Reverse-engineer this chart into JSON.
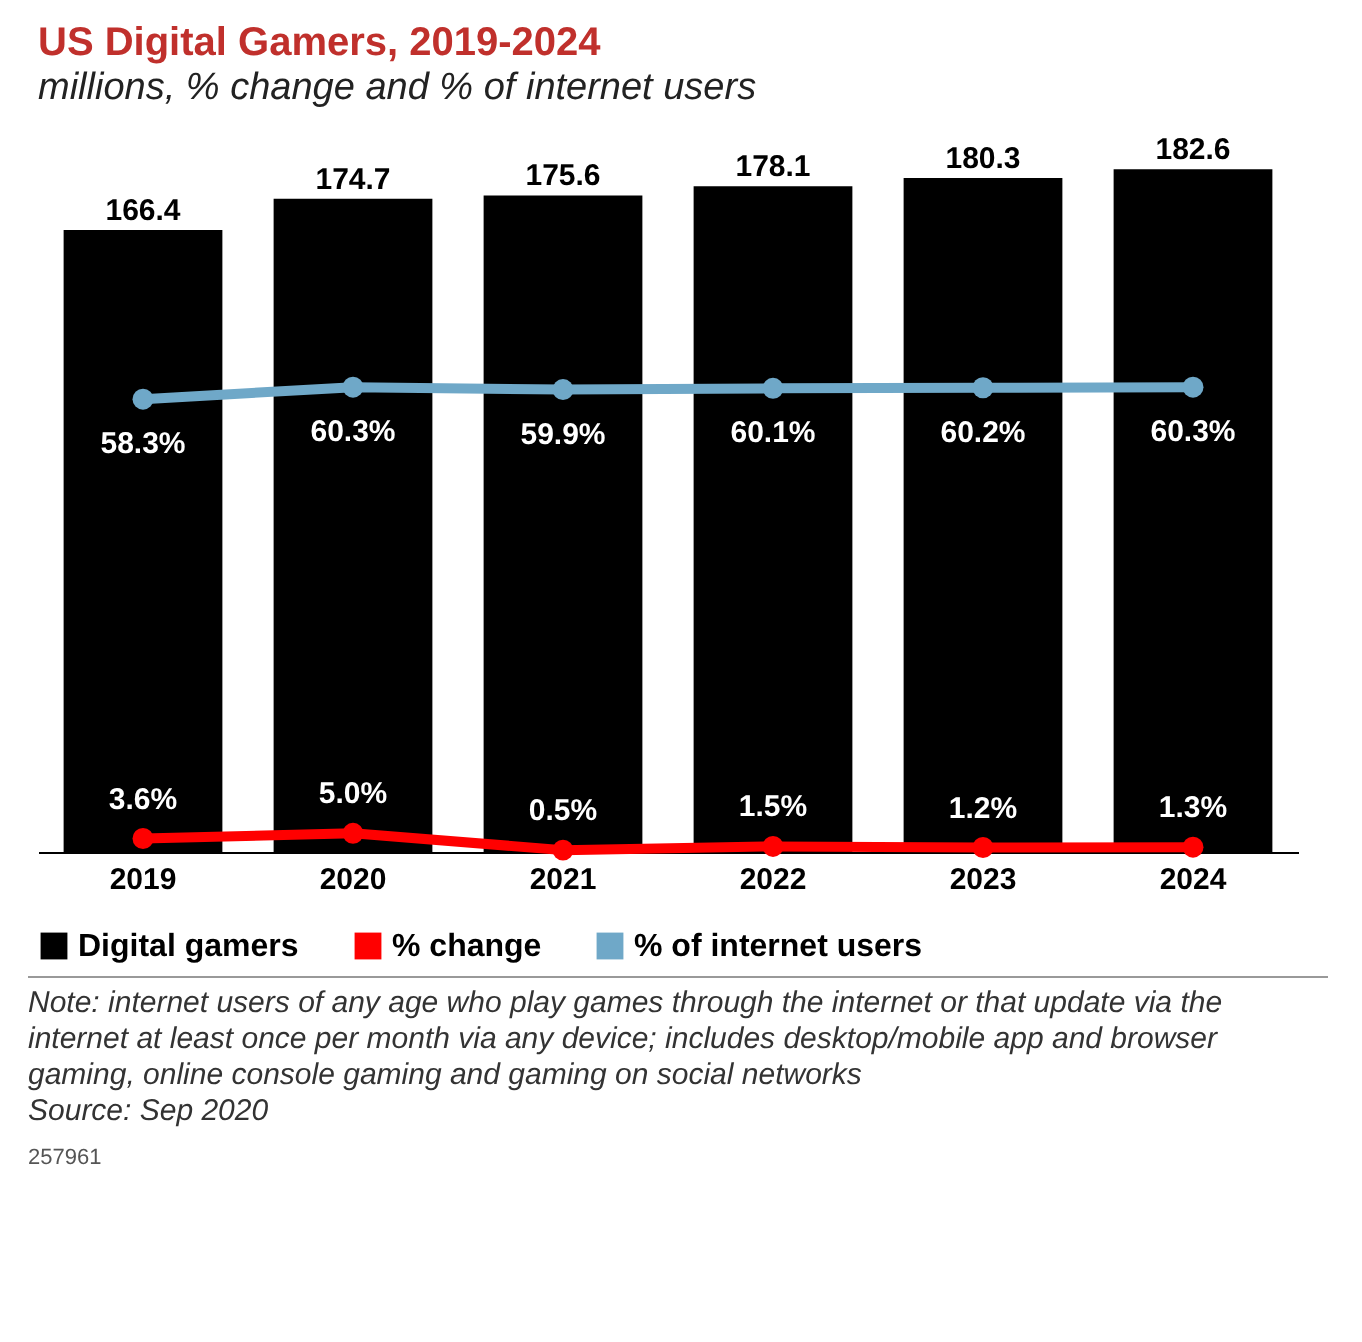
{
  "chart_data": {
    "type": "bar",
    "title": "US Digital Gamers, 2019-2024",
    "subtitle": "millions, % change and % of internet users",
    "categories": [
      "2019",
      "2020",
      "2021",
      "2022",
      "2023",
      "2024"
    ],
    "series": [
      {
        "name": "Digital gamers",
        "color": "#000000",
        "values": [
          166.4,
          174.7,
          175.6,
          178.1,
          180.3,
          182.6
        ],
        "value_labels": [
          "166.4",
          "174.7",
          "175.6",
          "178.1",
          "180.3",
          "182.6"
        ]
      },
      {
        "name": "% change",
        "type": "line",
        "color": "#ff0000",
        "values": [
          3.6,
          5.0,
          0.5,
          1.5,
          1.2,
          1.3
        ],
        "value_labels": [
          "3.6%",
          "5.0%",
          "0.5%",
          "1.5%",
          "1.2%",
          "1.3%"
        ]
      },
      {
        "name": "% of internet users",
        "type": "line",
        "axis": "y2",
        "color": "#6fa8c8",
        "values": [
          58.3,
          60.3,
          59.9,
          60.1,
          60.2,
          60.3
        ],
        "value_labels": [
          "58.3%",
          "60.3%",
          "59.9%",
          "60.1%",
          "60.2%",
          "60.3%"
        ]
      }
    ],
    "legend": "bottom",
    "marker": "circle",
    "grid": false,
    "annotations": [
      "Note: internet users of any age who play games through the internet or that update via the internet at least once per month via any device; includes desktop/mobile app and browser gaming, online console gaming and gaming on social networks",
      "Source: Sep 2020",
      "257961"
    ]
  }
}
